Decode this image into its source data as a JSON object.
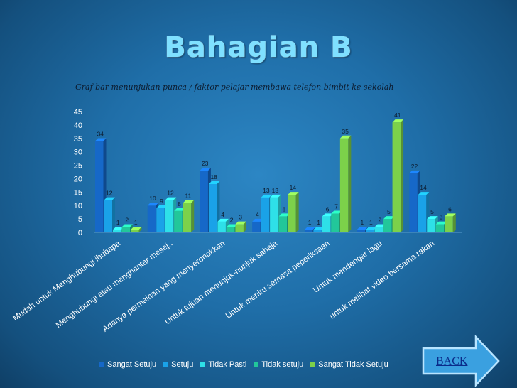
{
  "slide": {
    "title": "Bahagian B",
    "back_label": "BACK"
  },
  "chart_data": {
    "type": "bar",
    "title": "Graf bar menunjukan punca / faktor pelajar membawa telefon bimbit ke sekolah",
    "xlabel": "",
    "ylabel": "",
    "ylim": [
      0,
      45
    ],
    "yticks": [
      0,
      5,
      10,
      15,
      20,
      25,
      30,
      35,
      40,
      45
    ],
    "grid": false,
    "legend_position": "bottom",
    "categories": [
      "Mudah untuk Menghubungi ibubapa",
      "Menghubungi atau menghantar mesej..",
      "Adanya permainan yang menyeronokkan",
      "Untuk tujuan menunjuk-nunjuk sahaja",
      "Untuk meniru semasa peperiksaan",
      "Untuk mendengar lagu",
      "untuk melihat video bersama rakan"
    ],
    "series": [
      {
        "name": "Sangat Setuju",
        "color": "#1668c8",
        "values": [
          34,
          10,
          23,
          4,
          1,
          1,
          22
        ]
      },
      {
        "name": "Setuju",
        "color": "#1aa2e8",
        "values": [
          12,
          9,
          18,
          13,
          1,
          1,
          14
        ]
      },
      {
        "name": "Tidak Pasti",
        "color": "#2ee0e8",
        "values": [
          1,
          12,
          4,
          13,
          6,
          2,
          5
        ]
      },
      {
        "name": "Tidak setuju",
        "color": "#22c79a",
        "values": [
          2,
          8,
          2,
          6,
          7,
          5,
          3
        ]
      },
      {
        "name": "Sangat Tidak Setuju",
        "color": "#7cd14a",
        "values": [
          1,
          11,
          3,
          14,
          35,
          41,
          6
        ]
      }
    ]
  }
}
